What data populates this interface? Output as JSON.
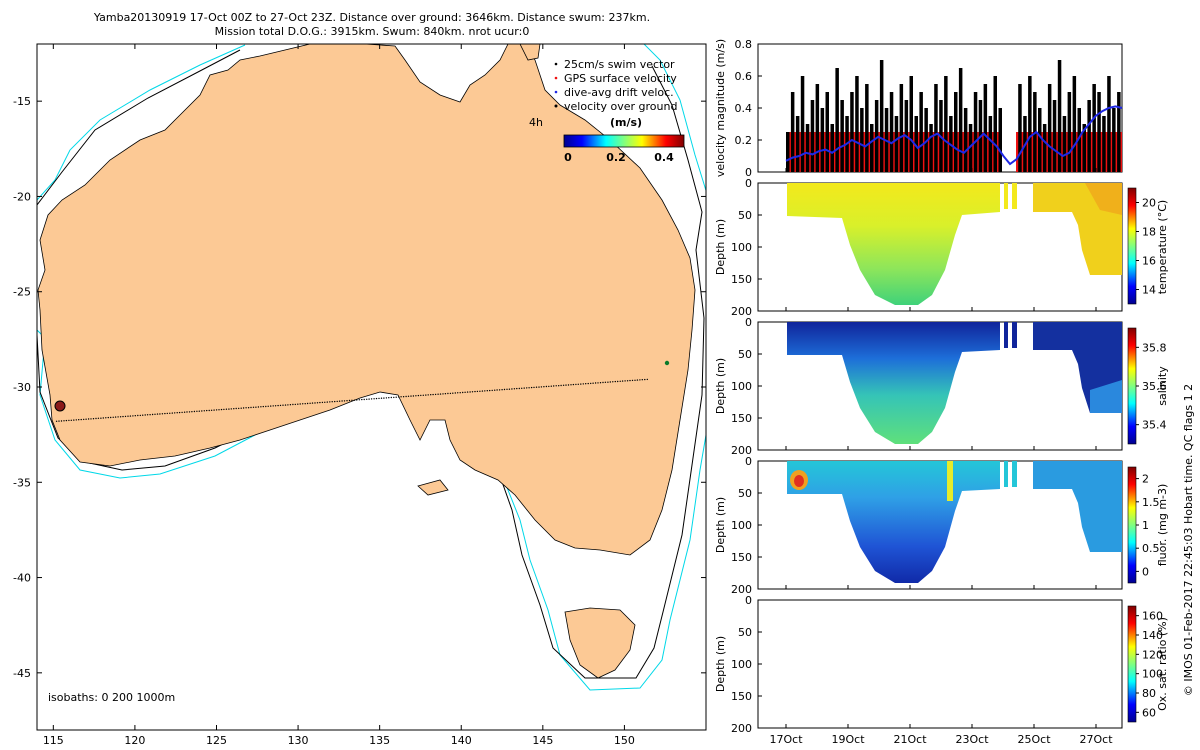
{
  "header": {
    "title_line1": "Yamba20130919 17-Oct 00Z to 27-Oct 23Z. Distance over ground: 3646km. Distance swum: 237km.",
    "title_line2": "Mission total D.O.G.: 3915km. Swum: 840km. nrot ucur:0"
  },
  "colors": {
    "land": "#fcc995",
    "ocean": "#ffffff",
    "isobath_200": "#000000",
    "isobath_1000": "#00d8e8",
    "velocity_over_ground": "#000000",
    "dive_avg_drift": "#1f28e6",
    "gps_surface": "#ee1111"
  },
  "map": {
    "type": "map",
    "xlim": [
      114,
      155
    ],
    "ylim": [
      -48,
      -12
    ],
    "xticks": [
      "115",
      "120",
      "125",
      "130",
      "135",
      "140",
      "145",
      "150"
    ],
    "yticks": [
      "-15",
      "-20",
      "-25",
      "-30",
      "-35",
      "-40",
      "-45"
    ],
    "legend": {
      "items": [
        "25cm/s swim vector",
        "GPS surface velocity",
        "dive-avg drift veloc.",
        "velocity over ground"
      ],
      "placement": "top-right",
      "time_marker": "4h"
    },
    "colorbar": {
      "label": "(m/s)",
      "ticks": [
        "0",
        "0.2",
        "0.4"
      ],
      "range": [
        0,
        0.5
      ]
    },
    "isobaths_label": "isobaths: 0   200  1000m",
    "track": {
      "start": [
        115.2,
        -31.8
      ],
      "end": [
        151.4,
        -29.6
      ]
    }
  },
  "chart_data": [
    {
      "type": "bar",
      "ylabel": "velocity magnitude (m/s)",
      "ylim": [
        0,
        0.8
      ],
      "yticks": [
        "0",
        "0.2",
        "0.4",
        "0.6",
        "0.8"
      ],
      "xlim": [
        16.0,
        28.1
      ],
      "series": [
        {
          "kind": "bar",
          "values": [
            0.25,
            0.5,
            0.35,
            0.6,
            0.3,
            0.45,
            0.55,
            0.4,
            0.5,
            0.3,
            0.65,
            0.45,
            0.35,
            0.5,
            0.6,
            0.4,
            0.55,
            0.3,
            0.45,
            0.7,
            0.4,
            0.5,
            0.35,
            0.55,
            0.45,
            0.6,
            0.35,
            0.5,
            0.4,
            0.3,
            0.55,
            0.45,
            0.6,
            0.35,
            0.5,
            0.65,
            0.4,
            0.3,
            0.5,
            0.45,
            0.55,
            0.35,
            0.6,
            0.4,
            0.5,
            0.25,
            0.45,
            0.55,
            0.35,
            0.6,
            0.5,
            0.4,
            0.3,
            0.55,
            0.45,
            0.7,
            0.35,
            0.5,
            0.6,
            0.4,
            0.3,
            0.45,
            0.55,
            0.5,
            0.35,
            0.6,
            0.4,
            0.5
          ]
        },
        {
          "kind": "line",
          "values": [
            0.07,
            0.09,
            0.1,
            0.12,
            0.11,
            0.13,
            0.14,
            0.12,
            0.15,
            0.17,
            0.2,
            0.18,
            0.16,
            0.19,
            0.22,
            0.2,
            0.18,
            0.21,
            0.23,
            0.2,
            0.15,
            0.18,
            0.22,
            0.24,
            0.2,
            0.17,
            0.14,
            0.12,
            0.16,
            0.2,
            0.24,
            0.2,
            0.16,
            0.1,
            0.05,
            0.08,
            0.15,
            0.22,
            0.25,
            0.2,
            0.16,
            0.13,
            0.1,
            0.12,
            0.18,
            0.25,
            0.3,
            0.35,
            0.38,
            0.4,
            0.41,
            0.4
          ]
        }
      ]
    },
    {
      "type": "heatmap",
      "ylabel": "Depth (m)",
      "colorbar_label": "temperature (°C)",
      "colorbar_ticks": [
        "14",
        "16",
        "18",
        "20"
      ],
      "yticks": [
        "0",
        "50",
        "100",
        "150",
        "200"
      ]
    },
    {
      "type": "heatmap",
      "ylabel": "Depth (m)",
      "colorbar_label": "salinity",
      "colorbar_ticks": [
        "35.4",
        "35.6",
        "35.8"
      ],
      "yticks": [
        "0",
        "50",
        "100",
        "150",
        "200"
      ]
    },
    {
      "type": "heatmap",
      "ylabel": "Depth (m)",
      "colorbar_label": "fluor. (mg m-3)",
      "colorbar_ticks": [
        "0",
        "0.5",
        "1",
        "1.5",
        "2"
      ],
      "yticks": [
        "0",
        "50",
        "100",
        "150",
        "200"
      ]
    },
    {
      "type": "heatmap",
      "ylabel": "Depth (m)",
      "colorbar_label": "Ox. sat. ratio (%)",
      "colorbar_ticks": [
        "60",
        "80",
        "100",
        "120",
        "140",
        "160"
      ],
      "yticks": [
        "0",
        "50",
        "100",
        "150",
        "200"
      ]
    }
  ],
  "time_axis": {
    "ticks": [
      "17Oct",
      "19Oct",
      "21Oct",
      "23Oct",
      "25Oct",
      "27Oct"
    ]
  },
  "footer": {
    "credit": "© IMOS 01-Feb-2017 22:45:03 Hobart time. QC flags 1  2"
  }
}
